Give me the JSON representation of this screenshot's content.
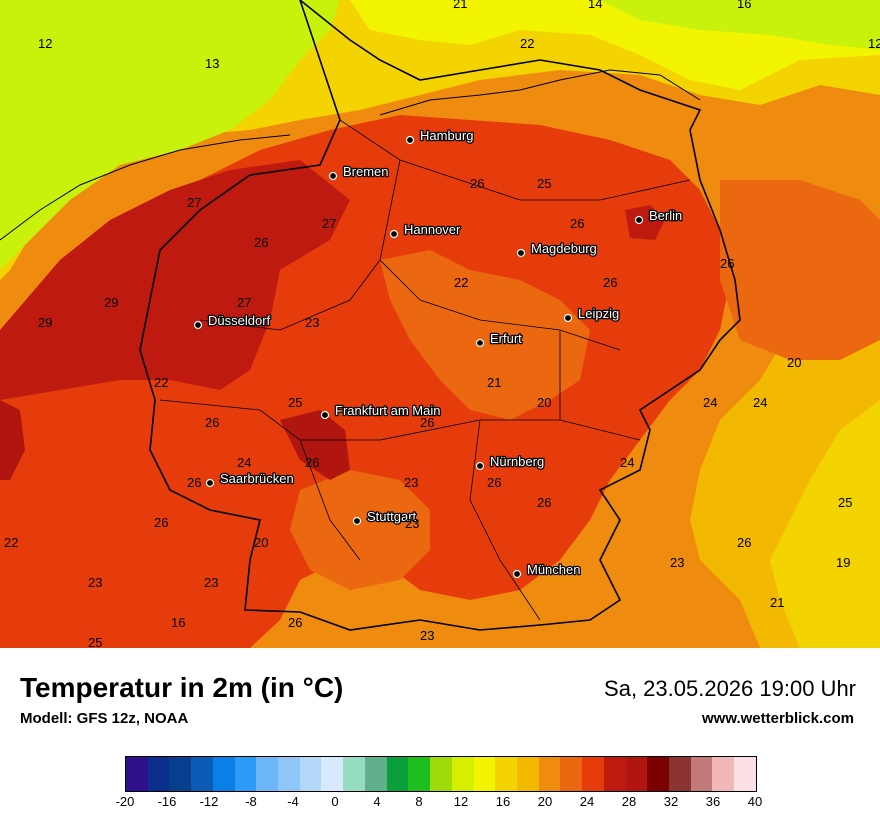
{
  "title": "Temperatur in 2m (in °C)",
  "model": "Modell: GFS 12z, NOAA",
  "datetime": "Sa, 23.05.2026 19:00 Uhr",
  "website": "www.wetterblick.com",
  "cities": [
    {
      "name": "Hamburg"
    },
    {
      "name": "Bremen"
    },
    {
      "name": "Hannover"
    },
    {
      "name": "Berlin"
    },
    {
      "name": "Magdeburg"
    },
    {
      "name": "Leipzig"
    },
    {
      "name": "Düsseldorf"
    },
    {
      "name": "Erfurt"
    },
    {
      "name": "Frankfurt am Main"
    },
    {
      "name": "Nürnberg"
    },
    {
      "name": "Saarbrücken"
    },
    {
      "name": "Stuttgart"
    },
    {
      "name": "München"
    }
  ],
  "temperature_labels": [
    "12",
    "13",
    "14",
    "16",
    "12",
    "21",
    "22",
    "27",
    "27",
    "26",
    "26",
    "25",
    "26",
    "26",
    "26",
    "22",
    "29",
    "27",
    "29",
    "23",
    "22",
    "21",
    "20",
    "20",
    "23",
    "25",
    "26",
    "26",
    "24",
    "24",
    "24",
    "26",
    "24",
    "23",
    "26",
    "26",
    "25",
    "26",
    "26",
    "20",
    "22",
    "26",
    "23",
    "19",
    "23",
    "23",
    "21",
    "16",
    "26",
    "25",
    "23"
  ],
  "colorbar": {
    "colors": [
      "#2e0f8c",
      "#0c2e8c",
      "#073f8c",
      "#0c5bb4",
      "#0a80e6",
      "#2c9af7",
      "#6fb6f7",
      "#8fc6f7",
      "#b3d8f7",
      "#d7e9fb",
      "#95dcc0",
      "#60b08c",
      "#0b9f3c",
      "#1fbe1f",
      "#9edb0a",
      "#d6ef00",
      "#f3f500",
      "#f3d300",
      "#f3b800",
      "#ef8c10",
      "#ec6810",
      "#e63c0b",
      "#be1a10",
      "#b0150f",
      "#7d0000",
      "#8c3432",
      "#c07878",
      "#f2b7b7",
      "#fbe1e6"
    ],
    "ticks": [
      "-20",
      "-16",
      "-12",
      "-8",
      "-4",
      "0",
      "4",
      "8",
      "12",
      "16",
      "20",
      "24",
      "28",
      "32",
      "36",
      "40"
    ]
  },
  "map_colors": {
    "t12": "#c8f20c",
    "t14": "#d6ef00",
    "t16": "#f3f500",
    "t18": "#f3d300",
    "t20": "#f3b800",
    "t22": "#ef8c10",
    "t24": "#ec6810",
    "t26": "#e63c0b",
    "t28": "#be1a10",
    "t30": "#b0150f",
    "sea": "#a8e070",
    "boundary": "#000000"
  }
}
